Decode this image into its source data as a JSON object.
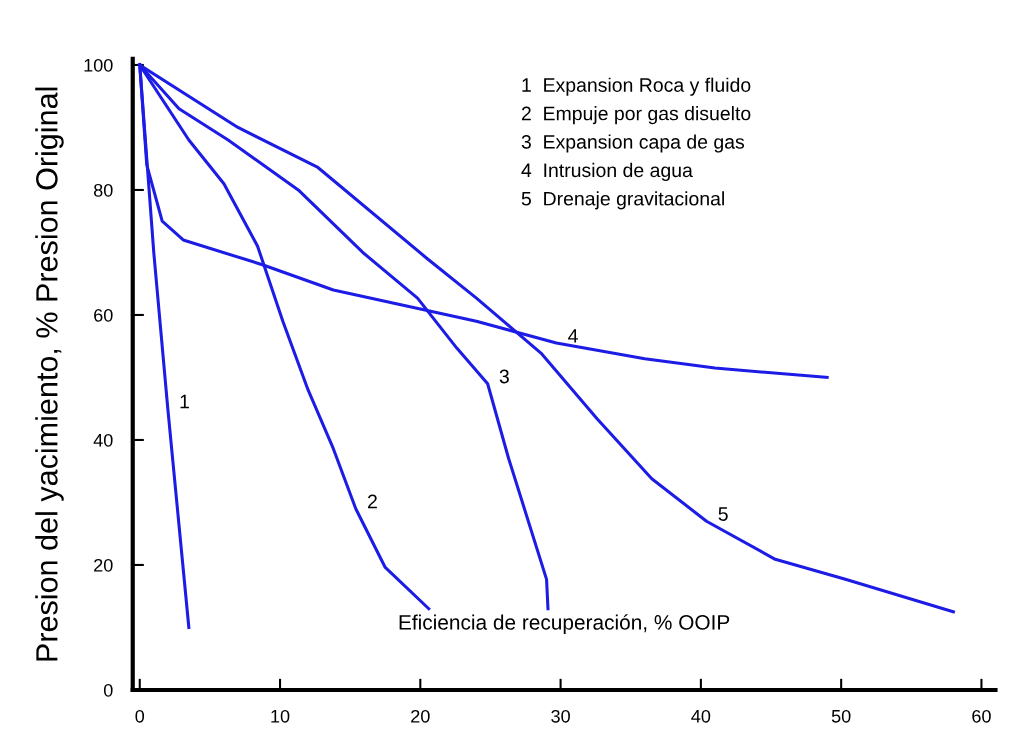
{
  "chart_data": {
    "type": "line",
    "xlabel": "Eficiencia de recuperación, % OOIP",
    "ylabel": "Presion del yacimiento, % Presion Original",
    "xlim": [
      -0.5,
      61
    ],
    "ylim": [
      0,
      101
    ],
    "xticks": [
      0,
      10,
      20,
      30,
      40,
      50,
      60
    ],
    "yticks": [
      0,
      20,
      40,
      60,
      80,
      100
    ],
    "grid": false,
    "legend": false,
    "marker": "none",
    "line_style": "solid",
    "series": [
      {
        "name": "1",
        "color": "#1c1ce6",
        "x": [
          0,
          0.5,
          1,
          2,
          3.5
        ],
        "values": [
          100,
          85,
          70,
          45,
          10
        ]
      },
      {
        "name": "2",
        "color": "#1c1ce6",
        "x": [
          0,
          3.5,
          6,
          8.4,
          10.2,
          12,
          13.8,
          15.4,
          17.5,
          20.6
        ],
        "values": [
          100,
          88,
          81,
          71,
          59,
          48,
          38.6,
          29,
          19.6,
          13
        ]
      },
      {
        "name": "3",
        "color": "#1c1ce6",
        "x": [
          0,
          2.8,
          6.3,
          11.3,
          15.9,
          19.8,
          22.6,
          24.8,
          26.3,
          29,
          29.1
        ],
        "values": [
          100,
          93,
          88,
          80,
          70,
          62.7,
          54.7,
          49,
          37,
          17.7,
          13
        ]
      },
      {
        "name": "4",
        "color": "#1c1ce6",
        "x": [
          0,
          0.5,
          1.6,
          3.1,
          8.8,
          13.8,
          24,
          29.7,
          36,
          41,
          49
        ],
        "values": [
          100,
          84,
          75,
          72,
          68,
          64,
          59,
          55.5,
          53,
          51.5,
          50
        ]
      },
      {
        "name": "5",
        "color": "#1c1ce6",
        "x": [
          0,
          7,
          12.7,
          20.5,
          24,
          28.6,
          32.6,
          36.5,
          40.4,
          45.3,
          50.3,
          58
        ],
        "values": [
          100,
          90,
          83.6,
          69,
          62.7,
          53.9,
          43.4,
          33.8,
          27,
          20.9,
          17.7,
          12.5
        ]
      }
    ],
    "annotations": [
      "1  Expansion Roca y fluido",
      "2  Empuje por gas disuelto",
      "3  Expansion capa de gas",
      "4  Intrusion de agua",
      "5  Drenaje gravitacional"
    ]
  }
}
